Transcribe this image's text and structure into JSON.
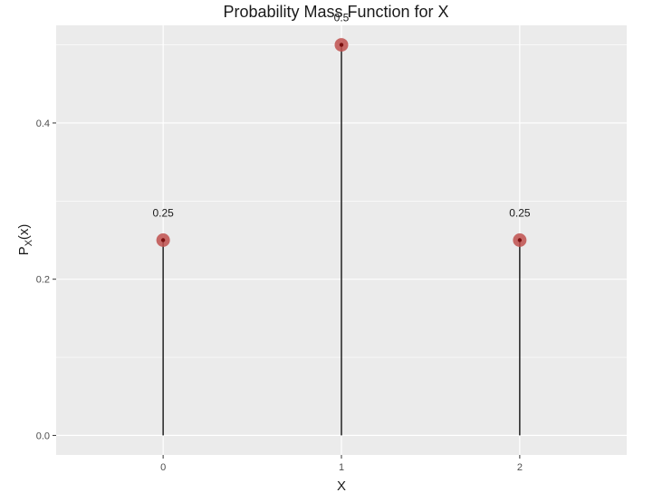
{
  "chart_data": {
    "type": "scatter",
    "subtype": "lollipop",
    "title": "Probability Mass Function for X",
    "xlabel": "X",
    "ylabel": "P_X(x)",
    "ylabel_main": "P",
    "ylabel_sub": "X",
    "ylabel_tail": "(x)",
    "x": [
      0,
      1,
      2
    ],
    "values": [
      0.25,
      0.5,
      0.25
    ],
    "data_labels": [
      "0.25",
      "0.5",
      "0.25"
    ],
    "x_ticks": [
      "0",
      "1",
      "2"
    ],
    "y_ticks": [
      "0.0",
      "0.2",
      "0.4"
    ],
    "xlim": [
      -0.6,
      2.6
    ],
    "ylim": [
      -0.025,
      0.525
    ],
    "grid": true,
    "legend": "none",
    "colors": {
      "panel_bg": "#ebebeb",
      "grid": "#ffffff",
      "point_fill": "#c0504d",
      "point_center": "#7a1010",
      "stem": "#000000"
    }
  }
}
